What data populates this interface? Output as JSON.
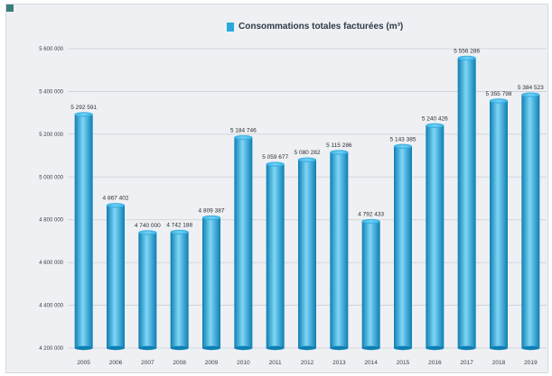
{
  "colors": {
    "bar_light": "#7fd6f7",
    "bar_mid": "#29a9e0",
    "bar_dark": "#0d7fb3",
    "gridline": "#c9ced4",
    "background": "#eef0f3"
  },
  "chart_data": {
    "type": "bar",
    "title": "",
    "xlabel": "",
    "ylabel": "",
    "legend": {
      "position": "top-center",
      "entries": [
        "Consommations totales facturées (m³)"
      ]
    },
    "categories": [
      "2005",
      "2006",
      "2007",
      "2008",
      "2009",
      "2010",
      "2011",
      "2012",
      "2013",
      "2014",
      "2015",
      "2016",
      "2017",
      "2018",
      "2019"
    ],
    "series": [
      {
        "name": "Consommations totales facturées (m³)",
        "values": [
          5292591,
          4867402,
          4740000,
          4742188,
          4809387,
          5184746,
          5059677,
          5080282,
          5115286,
          4792433,
          5143385,
          5240426,
          5556286,
          5355798,
          5384523
        ],
        "data_labels": [
          "5 292 591",
          "4 867 402",
          "4 740 000",
          "4 742 188",
          "4 809 387",
          "5 184 746",
          "5 059 677",
          "5 080 282",
          "5 115 286",
          "4 792 433",
          "5 143 385",
          "5 240 426",
          "5 556 286",
          "5 355 798",
          "5 384 523"
        ]
      }
    ],
    "ylim": [
      4200000,
      5600000
    ],
    "y_ticks": [
      4200000,
      4400000,
      4600000,
      4800000,
      5000000,
      5200000,
      5400000,
      5600000
    ],
    "y_tick_labels": [
      "4 200 000",
      "4 400 000",
      "4 600 000",
      "4 800 000",
      "5 000 000",
      "5 200 000",
      "5 400 000",
      "5 600 000"
    ],
    "grid": true
  }
}
